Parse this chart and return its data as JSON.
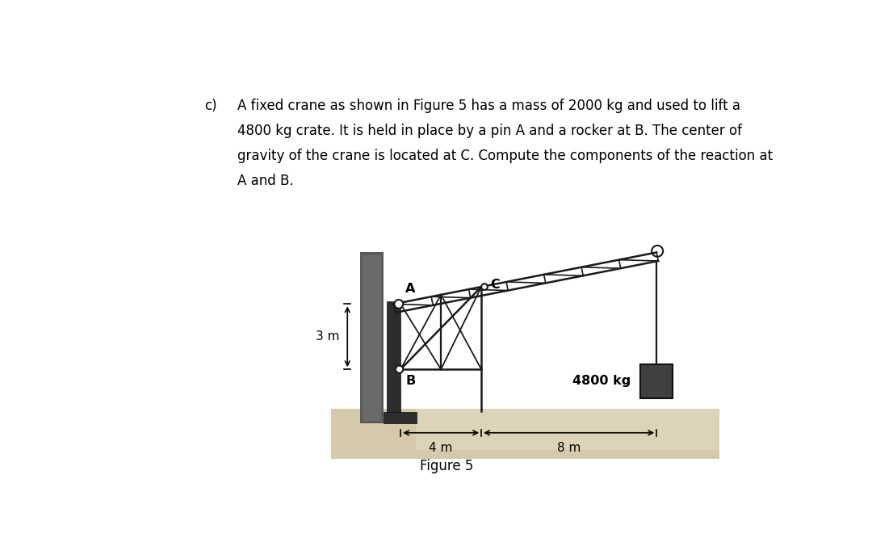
{
  "bg_color": "#ffffff",
  "text_color": "#000000",
  "crane_color": "#1a1a1a",
  "wall_dark": "#5a5a5a",
  "wall_light": "#8a8a8a",
  "ground_color": "#d4c9a8",
  "ground_dark": "#b0a080",
  "crate_color": "#404040",
  "fig_width": 10.8,
  "fig_height": 6.66,
  "dpi": 100,
  "label_c": "c)",
  "lines": [
    "A fixed crane as shown in Figure 5 has a mass of 2000 kg and used to lift a",
    "4800 kg crate. It is held in place by a pin A and a rocker at B. The center of",
    "gravity of the crane is located at C. Compute the components of the reaction at",
    "A and B."
  ],
  "figure_caption": "Figure 5"
}
